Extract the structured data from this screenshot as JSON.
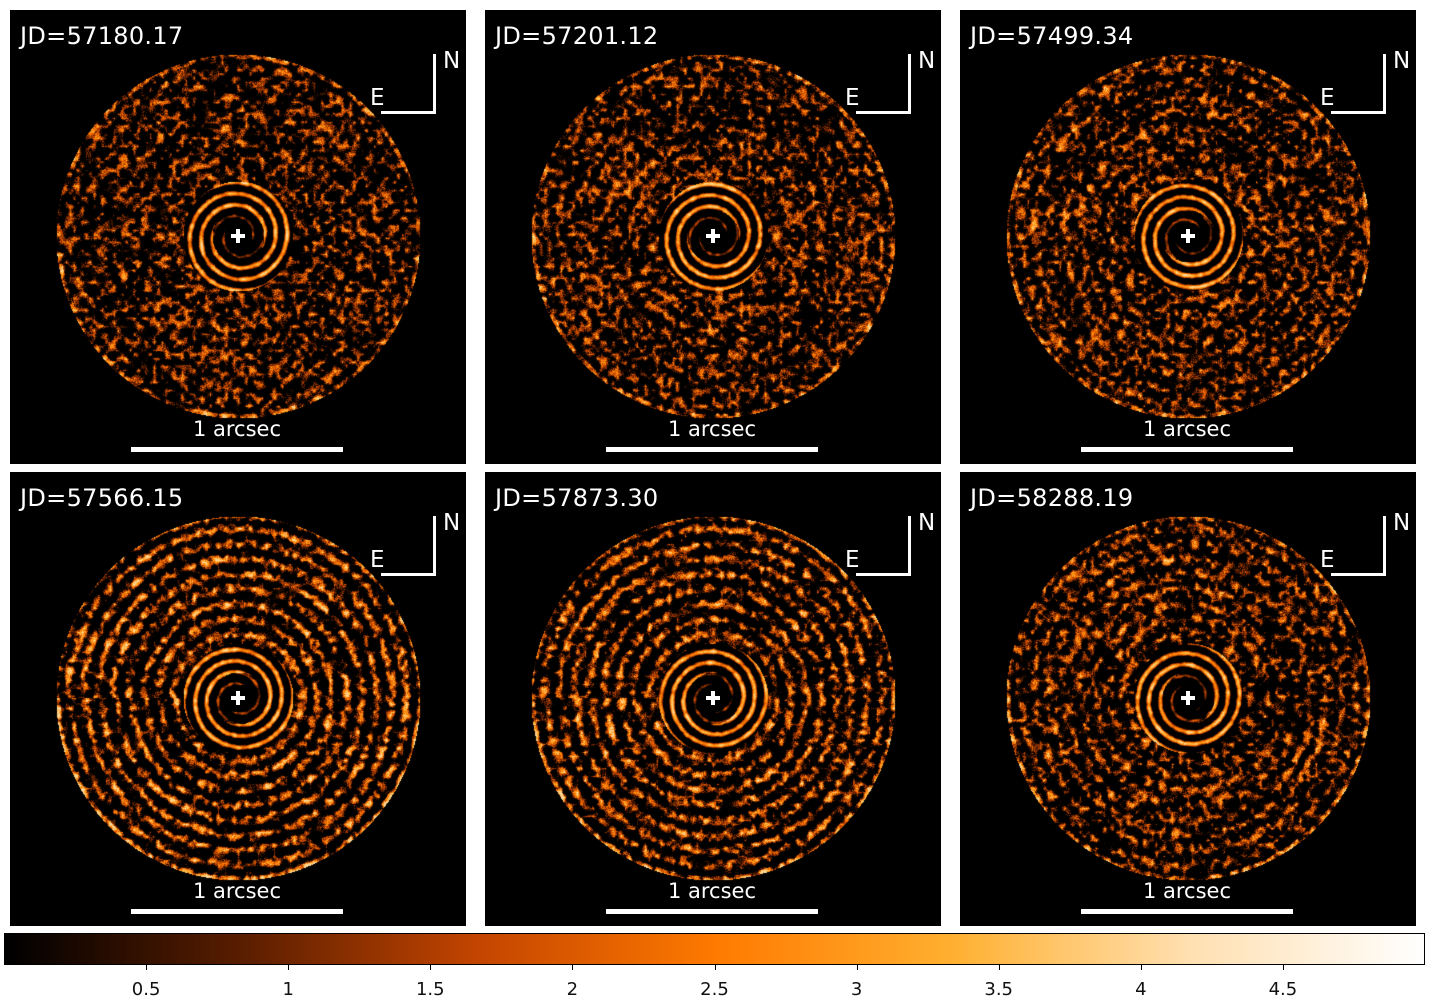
{
  "panels": [
    {
      "jd": "JD=57180.17",
      "north": "N",
      "east": "E",
      "scale_label": "1 arcsec",
      "rings": 0.2
    },
    {
      "jd": "JD=57201.12",
      "north": "N",
      "east": "E",
      "scale_label": "1 arcsec",
      "rings": 0.25
    },
    {
      "jd": "JD=57499.34",
      "north": "N",
      "east": "E",
      "scale_label": "1 arcsec",
      "rings": 0.3
    },
    {
      "jd": "JD=57566.15",
      "north": "N",
      "east": "E",
      "scale_label": "1 arcsec",
      "rings": 0.9
    },
    {
      "jd": "JD=57873.30",
      "north": "N",
      "east": "E",
      "scale_label": "1 arcsec",
      "rings": 0.75
    },
    {
      "jd": "JD=58288.19",
      "north": "N",
      "east": "E",
      "scale_label": "1 arcsec",
      "rings": 0.4
    }
  ],
  "colorbar": {
    "range": [
      0,
      5
    ],
    "ticks": [
      "0.5",
      "1",
      "1.5",
      "2",
      "2.5",
      "3",
      "3.5",
      "4",
      "4.5"
    ],
    "tick_values": [
      0.5,
      1,
      1.5,
      2,
      2.5,
      3,
      3.5,
      4,
      4.5
    ],
    "colors": [
      "#000000",
      "#5a1e00",
      "#c44500",
      "#ff7a00",
      "#ffb030",
      "#ffe0b0",
      "#ffffff"
    ]
  }
}
